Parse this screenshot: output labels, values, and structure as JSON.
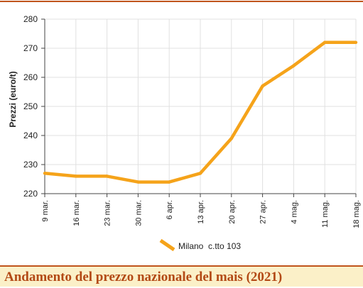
{
  "caption": "Andamento del prezzo nazionale del mais (2021)",
  "colors": {
    "line": "#f5a31a",
    "accent": "#c0541c",
    "caption_bg": "#fbf0c8",
    "grid": "#e0e0e0"
  },
  "chart_data": {
    "type": "line",
    "title": "",
    "xlabel": "",
    "ylabel": "Prezzi (euro/t)",
    "categories": [
      "9 mar.",
      "16 mar.",
      "23 mar.",
      "30 mar.",
      "6 apr.",
      "13 apr.",
      "20 apr.",
      "27 apr.",
      "4 mag.",
      "11 mag.",
      "18 mag."
    ],
    "ylim": [
      220,
      280
    ],
    "yticks": [
      220,
      230,
      240,
      250,
      260,
      270,
      280
    ],
    "grid": true,
    "legend_position": "bottom-center",
    "series": [
      {
        "name": "Milano  c.tto 103",
        "values": [
          227,
          226,
          226,
          224,
          224,
          227,
          239,
          257,
          264,
          272,
          272
        ]
      }
    ]
  }
}
